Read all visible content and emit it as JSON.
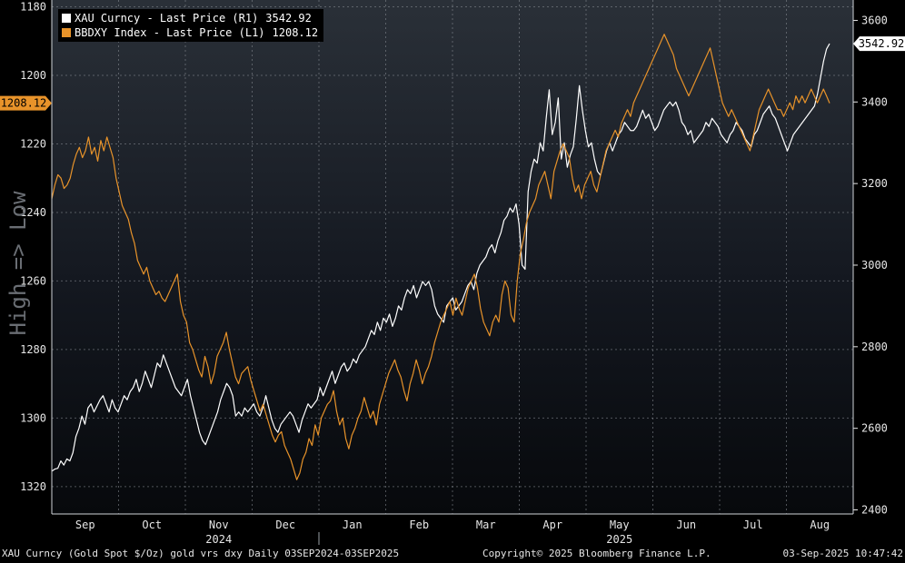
{
  "chart_data": {
    "type": "line",
    "title": "",
    "left_axis_label": "High => Low",
    "left_axis": {
      "inverted": true,
      "min": 1178,
      "max": 1328,
      "ticks": [
        1180,
        1200,
        1220,
        1240,
        1260,
        1280,
        1300,
        1320
      ]
    },
    "right_axis": {
      "min": 2390,
      "max": 3650,
      "ticks": [
        2400,
        2600,
        2800,
        3000,
        3200,
        3400,
        3600
      ]
    },
    "x_labels": [
      "Sep",
      "Oct",
      "Nov",
      "Dec",
      "Jan",
      "Feb",
      "Mar",
      "Apr",
      "May",
      "Jun",
      "Jul",
      "Aug"
    ],
    "year_labels": [
      "2024",
      "2025"
    ],
    "grid": true,
    "legend_position": "top-left",
    "series": [
      {
        "name": "XAU Curncy - Last Price (R1)",
        "last": "3542.92",
        "axis": "right",
        "color": "#ffffff",
        "values": [
          2495,
          2500,
          2502,
          2520,
          2510,
          2525,
          2520,
          2540,
          2580,
          2600,
          2630,
          2610,
          2650,
          2660,
          2640,
          2655,
          2670,
          2680,
          2660,
          2640,
          2670,
          2650,
          2640,
          2660,
          2680,
          2670,
          2690,
          2700,
          2720,
          2690,
          2710,
          2740,
          2720,
          2700,
          2730,
          2760,
          2750,
          2780,
          2760,
          2740,
          2720,
          2700,
          2690,
          2680,
          2700,
          2720,
          2680,
          2650,
          2620,
          2590,
          2570,
          2560,
          2580,
          2600,
          2620,
          2640,
          2670,
          2690,
          2710,
          2700,
          2680,
          2630,
          2640,
          2630,
          2650,
          2640,
          2650,
          2660,
          2640,
          2630,
          2650,
          2680,
          2650,
          2620,
          2600,
          2590,
          2610,
          2620,
          2630,
          2640,
          2630,
          2610,
          2590,
          2620,
          2640,
          2660,
          2650,
          2660,
          2670,
          2700,
          2680,
          2700,
          2720,
          2740,
          2710,
          2730,
          2750,
          2760,
          2740,
          2750,
          2770,
          2760,
          2780,
          2790,
          2800,
          2820,
          2840,
          2830,
          2860,
          2840,
          2870,
          2860,
          2880,
          2850,
          2870,
          2900,
          2890,
          2920,
          2940,
          2930,
          2950,
          2920,
          2940,
          2960,
          2950,
          2960,
          2940,
          2900,
          2880,
          2870,
          2860,
          2900,
          2910,
          2920,
          2890,
          2900,
          2910,
          2930,
          2950,
          2960,
          2940,
          2980,
          3000,
          3010,
          3020,
          3040,
          3050,
          3030,
          3060,
          3080,
          3110,
          3120,
          3140,
          3130,
          3150,
          3100,
          3000,
          2990,
          3180,
          3230,
          3260,
          3250,
          3300,
          3280,
          3360,
          3430,
          3320,
          3350,
          3410,
          3260,
          3300,
          3240,
          3270,
          3290,
          3360,
          3440,
          3380,
          3330,
          3290,
          3300,
          3260,
          3230,
          3220,
          3250,
          3280,
          3300,
          3280,
          3300,
          3320,
          3330,
          3350,
          3340,
          3330,
          3330,
          3340,
          3360,
          3380,
          3360,
          3370,
          3350,
          3330,
          3340,
          3360,
          3380,
          3390,
          3400,
          3390,
          3400,
          3380,
          3350,
          3340,
          3320,
          3330,
          3300,
          3310,
          3320,
          3330,
          3350,
          3340,
          3360,
          3350,
          3340,
          3320,
          3310,
          3300,
          3320,
          3330,
          3350,
          3340,
          3330,
          3310,
          3300,
          3290,
          3320,
          3330,
          3350,
          3370,
          3380,
          3390,
          3370,
          3360,
          3340,
          3320,
          3300,
          3280,
          3300,
          3320,
          3330,
          3340,
          3350,
          3360,
          3370,
          3380,
          3390,
          3420,
          3460,
          3500,
          3530,
          3542.92
        ]
      },
      {
        "name": "BBDXY Index - Last Price (L1)",
        "last": "1208.12",
        "axis": "left",
        "color": "#e8932a",
        "values": [
          1236,
          1232,
          1229,
          1230,
          1233,
          1232,
          1230,
          1226,
          1223,
          1221,
          1224,
          1222,
          1218,
          1223,
          1221,
          1225,
          1219,
          1222,
          1218,
          1221,
          1224,
          1230,
          1234,
          1238,
          1240,
          1242,
          1246,
          1249,
          1254,
          1256,
          1258,
          1256,
          1260,
          1262,
          1264,
          1263,
          1265,
          1266,
          1264,
          1262,
          1260,
          1258,
          1266,
          1270,
          1272,
          1278,
          1280,
          1283,
          1286,
          1288,
          1282,
          1285,
          1290,
          1287,
          1282,
          1280,
          1278,
          1275,
          1280,
          1284,
          1288,
          1290,
          1287,
          1286,
          1285,
          1289,
          1292,
          1295,
          1298,
          1296,
          1299,
          1302,
          1305,
          1307,
          1305,
          1304,
          1308,
          1310,
          1312,
          1315,
          1318,
          1316,
          1312,
          1310,
          1306,
          1308,
          1302,
          1305,
          1300,
          1298,
          1296,
          1295,
          1292,
          1298,
          1302,
          1300,
          1306,
          1309,
          1305,
          1303,
          1300,
          1298,
          1294,
          1297,
          1300,
          1298,
          1302,
          1296,
          1293,
          1290,
          1287,
          1285,
          1283,
          1286,
          1288,
          1292,
          1295,
          1290,
          1287,
          1283,
          1286,
          1290,
          1287,
          1285,
          1282,
          1278,
          1275,
          1272,
          1270,
          1268,
          1266,
          1270,
          1265,
          1268,
          1270,
          1266,
          1262,
          1260,
          1258,
          1262,
          1268,
          1272,
          1274,
          1276,
          1272,
          1270,
          1272,
          1264,
          1260,
          1262,
          1270,
          1272,
          1260,
          1252,
          1248,
          1243,
          1240,
          1238,
          1236,
          1232,
          1230,
          1228,
          1232,
          1236,
          1228,
          1225,
          1222,
          1220,
          1222,
          1224,
          1230,
          1234,
          1232,
          1236,
          1232,
          1230,
          1228,
          1232,
          1234,
          1230,
          1226,
          1222,
          1220,
          1218,
          1216,
          1218,
          1214,
          1212,
          1210,
          1212,
          1208,
          1206,
          1204,
          1202,
          1200,
          1198,
          1196,
          1194,
          1192,
          1190,
          1188,
          1190,
          1192,
          1194,
          1198,
          1200,
          1202,
          1204,
          1206,
          1204,
          1202,
          1200,
          1198,
          1196,
          1194,
          1192,
          1196,
          1200,
          1204,
          1208,
          1210,
          1212,
          1210,
          1212,
          1214,
          1216,
          1218,
          1220,
          1222,
          1218,
          1214,
          1210,
          1208,
          1206,
          1204,
          1206,
          1208,
          1210,
          1210,
          1212,
          1210,
          1208,
          1210,
          1206,
          1208,
          1206,
          1208,
          1206,
          1204,
          1206,
          1208,
          1206,
          1204,
          1206,
          1208.12
        ]
      }
    ]
  },
  "flags": {
    "left": "1208.12",
    "right": "3542.92"
  },
  "footer": {
    "left": "XAU Curncy (Gold Spot  $/Oz) gold vrs dxy  Daily 03SEP2024-03SEP2025",
    "center": "Copyright© 2025 Bloomberg Finance L.P.",
    "right": "03-Sep-2025 10:47:42"
  }
}
